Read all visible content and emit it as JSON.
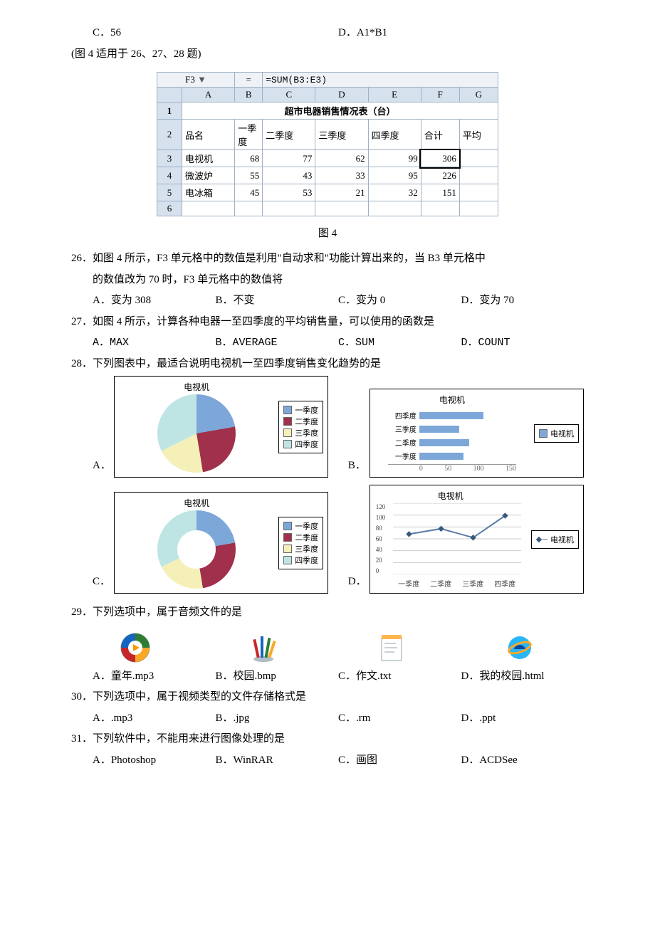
{
  "top": {
    "optC": "C．56",
    "optD": "D．A1*B1",
    "note": "(图 4 适用于 26、27、28 题)"
  },
  "excel": {
    "namebox": "F3",
    "formula": "=SUM(B3:E3)",
    "cols": [
      "A",
      "B",
      "C",
      "D",
      "E",
      "F",
      "G"
    ],
    "title": "超市电器销售情况表（台）",
    "headers": [
      "品名",
      "一季度",
      "二季度",
      "三季度",
      "四季度",
      "合计",
      "平均"
    ],
    "rows": [
      {
        "name": "电视机",
        "v": [
          68,
          77,
          62,
          99
        ],
        "sum": 306
      },
      {
        "name": "微波炉",
        "v": [
          55,
          43,
          33,
          95
        ],
        "sum": 226
      },
      {
        "name": "电冰箱",
        "v": [
          45,
          53,
          21,
          32
        ],
        "sum": 151
      }
    ],
    "caption": "图 4"
  },
  "q26": {
    "stem1": "26．如图 4 所示，F3 单元格中的数值是利用\"自动求和\"功能计算出来的，当 B3 单元格中",
    "stem2": "的数值改为 70 时，F3 单元格中的数值将",
    "A": "A．变为 308",
    "B": "B．不变",
    "C": "C．变为 0",
    "D": "D．变为 70"
  },
  "q27": {
    "stem": "27．如图 4 所示，计算各种电器一至四季度的平均销售量，可以使用的函数是",
    "A": "A．MAX",
    "B": "B．AVERAGE",
    "C": "C．SUM",
    "D": "D．COUNT"
  },
  "q28": {
    "stem": "28．下列图表中，最适合说明电视机一至四季度销售变化趋势的是",
    "chart_title": "电视机",
    "quarters": [
      "一季度",
      "二季度",
      "三季度",
      "四季度"
    ],
    "values": [
      68,
      77,
      62,
      99
    ],
    "colors": {
      "q1": "#7da7d9",
      "q2": "#a0304b",
      "q3": "#f5f0b8",
      "q4": "#bfe4e4",
      "line": "#5b7ca8",
      "marker": "#39597c"
    },
    "bar_axis_ticks": [
      "0",
      "50",
      "100",
      "150"
    ],
    "line_yticks": [
      "0",
      "20",
      "40",
      "60",
      "80",
      "100",
      "120"
    ],
    "legend_full": [
      "一季度",
      "二季度",
      "三季度",
      "四季度"
    ],
    "legend_single": "电视机"
  },
  "q29": {
    "stem": "29．下列选项中，属于音频文件的是",
    "A": "A．童年.mp3",
    "B": "B．校园.bmp",
    "C": "C．作文.txt",
    "D": "D．我的校园.html"
  },
  "q30": {
    "stem": "30．下列选项中，属于视频类型的文件存储格式是",
    "A": "A．.mp3",
    "B": "B．.jpg",
    "C": "C．.rm",
    "D": "D．.ppt"
  },
  "q31": {
    "stem": "31．下列软件中，不能用来进行图像处理的是",
    "A": "A．Photoshop",
    "B": "B．WinRAR",
    "C": "C．画图",
    "D": "D．ACDSee"
  }
}
